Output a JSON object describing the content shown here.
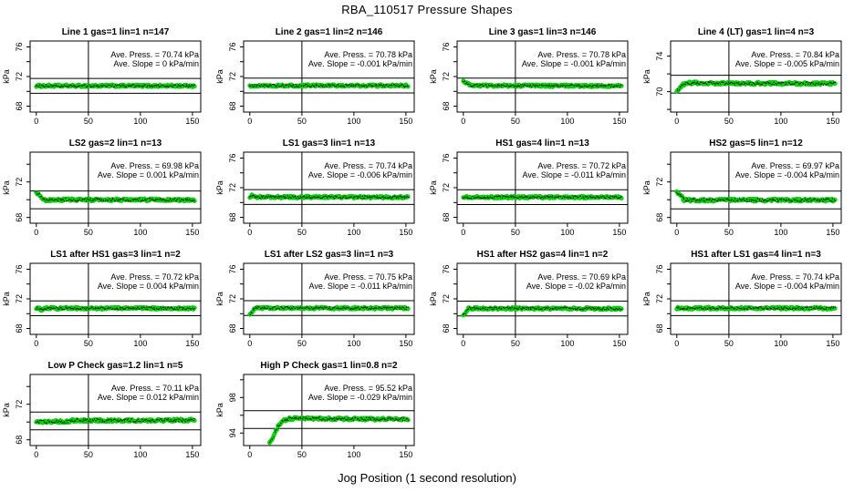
{
  "figure": {
    "title": "RBA_110517  Pressure Shapes",
    "xlabel": "Jog Position (1 second resolution)",
    "background": "#ffffff",
    "axis_color": "#000000",
    "point_color": "#00e000",
    "point_edge_color": "#00a000",
    "speck_color": "#000000"
  },
  "chart_data": {
    "type": "scatter",
    "grid": {
      "cols": 4,
      "rows": 4
    },
    "x_axis": {
      "lim": [
        -6,
        158
      ],
      "ticks": [
        0,
        50,
        100,
        150
      ]
    },
    "y_axis_label": "kPa",
    "plots": [
      {
        "title": "Line 1 gas=1 lin=1 n=147",
        "ave_press": 70.74,
        "ave_slope": 0,
        "press_label": "Ave. Press. =  70.74  kPa",
        "slope_label": "Ave. Slope =  0  kPa/min",
        "ylim": [
          67.2,
          76.8
        ],
        "yticks": [
          68,
          70,
          72,
          74,
          76
        ],
        "ylabeled": [
          68,
          72,
          76
        ],
        "hlines": [
          71.74,
          69.74
        ],
        "vline": 50,
        "profile": [
          [
            0,
            70.74
          ],
          [
            152,
            70.74
          ]
        ]
      },
      {
        "title": "Line 2 gas=1 lin=2 n=146",
        "ave_press": 70.78,
        "ave_slope": -0.001,
        "press_label": "Ave. Press. =  70.78  kPa",
        "slope_label": "Ave. Slope =  -0.001  kPa/min",
        "ylim": [
          67.2,
          76.8
        ],
        "yticks": [
          68,
          70,
          72,
          74,
          76
        ],
        "ylabeled": [
          68,
          72,
          76
        ],
        "hlines": [
          71.78,
          69.78
        ],
        "vline": 50,
        "profile": [
          [
            0,
            70.78
          ],
          [
            152,
            70.78
          ]
        ]
      },
      {
        "title": "Line 3 gas=1 lin=3 n=146",
        "ave_press": 70.78,
        "ave_slope": -0.001,
        "press_label": "Ave. Press. =  70.78  kPa",
        "slope_label": "Ave. Slope =  -0.001  kPa/min",
        "ylim": [
          67.2,
          76.8
        ],
        "yticks": [
          68,
          70,
          72,
          74,
          76
        ],
        "ylabeled": [
          68,
          72,
          76
        ],
        "hlines": [
          71.78,
          69.78
        ],
        "vline": 50,
        "profile": [
          [
            0,
            71.3
          ],
          [
            3,
            71.1
          ],
          [
            8,
            70.78
          ],
          [
            152,
            70.73
          ]
        ]
      },
      {
        "title": "Line 4 (LT) gas=1 lin=4 n=3",
        "ave_press": 70.84,
        "ave_slope": -0.005,
        "press_label": "Ave. Press. =  70.84  kPa",
        "slope_label": "Ave. Slope =  -0.005  kPa/min",
        "ylim": [
          67.7,
          75.7
        ],
        "yticks": [
          68,
          70,
          72,
          74
        ],
        "ylabeled": [
          70,
          74
        ],
        "hlines": [
          71.84,
          69.84
        ],
        "vline": 50,
        "profile": [
          [
            0,
            70.15
          ],
          [
            2,
            70.25
          ],
          [
            5,
            70.7
          ],
          [
            9,
            70.97
          ],
          [
            152,
            70.9
          ]
        ]
      },
      {
        "title": "LS2 gas=2 lin=1 n=13",
        "ave_press": 69.98,
        "ave_slope": 0.001,
        "press_label": "Ave. Press. =  69.98  kPa",
        "slope_label": "Ave. Slope =  0.001  kPa/min",
        "ylim": [
          67.35,
          75.35
        ],
        "yticks": [
          68,
          70,
          72,
          74
        ],
        "ylabeled": [
          68,
          72
        ],
        "hlines": [
          70.98,
          68.98
        ],
        "vline": 50,
        "profile": [
          [
            0,
            70.85
          ],
          [
            3,
            70.55
          ],
          [
            7,
            69.98
          ],
          [
            152,
            69.99
          ]
        ]
      },
      {
        "title": "LS1 gas=3 lin=1 n=13",
        "ave_press": 70.74,
        "ave_slope": -0.006,
        "press_label": "Ave. Press. =  70.74  kPa",
        "slope_label": "Ave. Slope =  -0.006  kPa/min",
        "ylim": [
          67.2,
          76.8
        ],
        "yticks": [
          68,
          70,
          72,
          74,
          76
        ],
        "ylabeled": [
          68,
          72,
          76
        ],
        "hlines": [
          71.74,
          69.74
        ],
        "vline": 50,
        "profile": [
          [
            0,
            70.68
          ],
          [
            2,
            70.92
          ],
          [
            4,
            70.74
          ],
          [
            152,
            70.71
          ]
        ]
      },
      {
        "title": "HS1 gas=4 lin=1 n=13",
        "ave_press": 70.72,
        "ave_slope": -0.011,
        "press_label": "Ave. Press. =  70.72  kPa",
        "slope_label": "Ave. Slope =  -0.011  kPa/min",
        "ylim": [
          67.2,
          76.8
        ],
        "yticks": [
          68,
          70,
          72,
          74,
          76
        ],
        "ylabeled": [
          68,
          72,
          76
        ],
        "hlines": [
          71.72,
          69.72
        ],
        "vline": 50,
        "profile": [
          [
            0,
            70.55
          ],
          [
            2,
            70.78
          ],
          [
            5,
            70.72
          ],
          [
            152,
            70.7
          ]
        ]
      },
      {
        "title": "HS2 gas=5 lin=1 n=12",
        "ave_press": 69.97,
        "ave_slope": -0.004,
        "press_label": "Ave. Press. =  69.97  kPa",
        "slope_label": "Ave. Slope =  -0.004  kPa/min",
        "ylim": [
          67.35,
          75.35
        ],
        "yticks": [
          68,
          70,
          72,
          74
        ],
        "ylabeled": [
          68,
          72
        ],
        "hlines": [
          70.97,
          68.97
        ],
        "vline": 50,
        "profile": [
          [
            0,
            70.9
          ],
          [
            3,
            70.6
          ],
          [
            7,
            69.95
          ],
          [
            152,
            69.96
          ]
        ]
      },
      {
        "title": "LS1 after HS1 gas=3 lin=1 n=2",
        "ave_press": 70.72,
        "ave_slope": 0.004,
        "press_label": "Ave. Press. =  70.72  kPa",
        "slope_label": "Ave. Slope =  0.004  kPa/min",
        "ylim": [
          67.2,
          76.8
        ],
        "yticks": [
          68,
          70,
          72,
          74,
          76
        ],
        "ylabeled": [
          68,
          72,
          76
        ],
        "hlines": [
          71.72,
          69.72
        ],
        "vline": 50,
        "profile": [
          [
            0,
            70.72
          ],
          [
            3,
            70.72
          ],
          [
            5,
            70.5
          ],
          [
            8,
            70.73
          ],
          [
            152,
            70.72
          ]
        ]
      },
      {
        "title": "LS1 after LS2 gas=3 lin=1 n=3",
        "ave_press": 70.75,
        "ave_slope": -0.011,
        "press_label": "Ave. Press. =  70.75  kPa",
        "slope_label": "Ave. Slope =  -0.011  kPa/min",
        "ylim": [
          67.2,
          76.8
        ],
        "yticks": [
          68,
          70,
          72,
          74,
          76
        ],
        "ylabeled": [
          68,
          72,
          76
        ],
        "hlines": [
          71.75,
          69.75
        ],
        "vline": 50,
        "profile": [
          [
            0,
            69.97
          ],
          [
            3,
            70.35
          ],
          [
            6,
            70.78
          ],
          [
            152,
            70.73
          ]
        ]
      },
      {
        "title": "HS1 after HS2 gas=4 lin=1 n=2",
        "ave_press": 70.69,
        "ave_slope": -0.02,
        "press_label": "Ave. Press. =  70.69  kPa",
        "slope_label": "Ave. Slope =  -0.02  kPa/min",
        "ylim": [
          67.2,
          76.8
        ],
        "yticks": [
          68,
          70,
          72,
          74,
          76
        ],
        "ylabeled": [
          68,
          72,
          76
        ],
        "hlines": [
          71.69,
          69.69
        ],
        "vline": 50,
        "profile": [
          [
            0,
            69.85
          ],
          [
            2,
            70.1
          ],
          [
            5,
            70.72
          ],
          [
            152,
            70.68
          ]
        ]
      },
      {
        "title": "HS1 after LS1 gas=4 lin=1 n=3",
        "ave_press": 70.74,
        "ave_slope": -0.004,
        "press_label": "Ave. Press. =  70.74  kPa",
        "slope_label": "Ave. Slope =  -0.004  kPa/min",
        "ylim": [
          67.2,
          76.8
        ],
        "yticks": [
          68,
          70,
          72,
          74,
          76
        ],
        "ylabeled": [
          68,
          72,
          76
        ],
        "hlines": [
          71.74,
          69.74
        ],
        "vline": 50,
        "profile": [
          [
            0,
            70.74
          ],
          [
            152,
            70.74
          ]
        ]
      },
      {
        "title": "Low P Check gas=1.2 lin=1 n=5",
        "ave_press": 70.11,
        "ave_slope": 0.012,
        "press_label": "Ave. Press. =  70.11  kPa",
        "slope_label": "Ave. Slope =  0.012  kPa/min",
        "ylim": [
          67.35,
          75.35
        ],
        "yticks": [
          68,
          70,
          72,
          74
        ],
        "ylabeled": [
          68,
          72
        ],
        "hlines": [
          71.11,
          69.11
        ],
        "vline": 50,
        "profile": [
          [
            0,
            70.02
          ],
          [
            31,
            70.04
          ],
          [
            34,
            70.17
          ],
          [
            152,
            70.2
          ]
        ]
      },
      {
        "title": "High P Check gas=1 lin=0.8 n=2",
        "ave_press": 95.52,
        "ave_slope": -0.029,
        "press_label": "Ave. Press. =  95.52  kPa",
        "slope_label": "Ave. Slope =  -0.029  kPa/min",
        "ylim": [
          92.6,
          100.6
        ],
        "yticks": [
          94,
          96,
          98,
          100
        ],
        "ylabeled": [
          94,
          98
        ],
        "hlines": [
          96.52,
          94.52
        ],
        "vline": 50,
        "profile": [
          [
            19,
            92.9
          ],
          [
            21,
            93.2
          ],
          [
            23,
            93.7
          ],
          [
            25,
            94.2
          ],
          [
            27,
            94.7
          ],
          [
            29,
            95.05
          ],
          [
            31,
            95.3
          ],
          [
            33,
            95.45
          ],
          [
            36,
            95.58
          ],
          [
            40,
            95.65
          ],
          [
            152,
            95.55
          ]
        ]
      }
    ]
  }
}
